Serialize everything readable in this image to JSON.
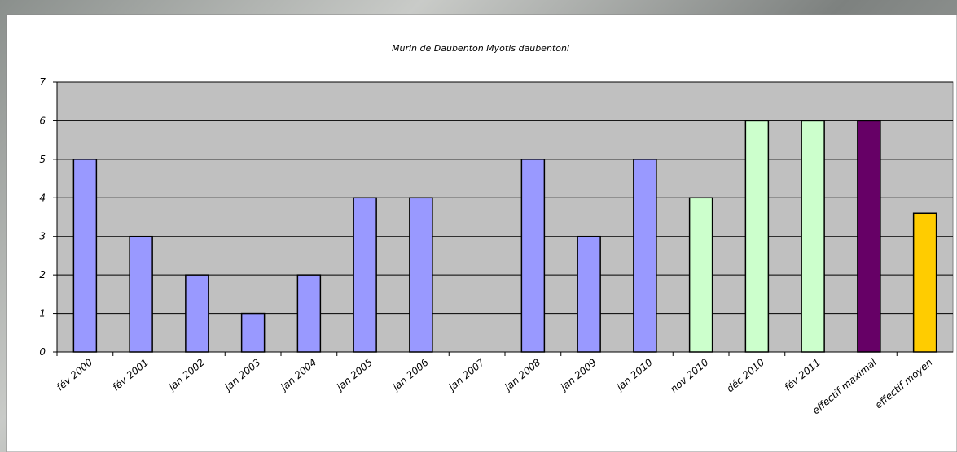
{
  "chart_data": {
    "type": "bar",
    "title": "Murin de Daubenton Myotis daubentoni",
    "categories": [
      "fév 2000",
      "fév 2001",
      "jan 2002",
      "jan 2003",
      "jan 2004",
      "jan 2005",
      "jan 2006",
      "jan 2007",
      "jan 2008",
      "jan 2009",
      "jan 2010",
      "nov 2010",
      "déc 2010",
      "fév 2011",
      "effectif maximal",
      "effectif moyen"
    ],
    "values": [
      5,
      3,
      2,
      1,
      2,
      4,
      4,
      0,
      5,
      3,
      5,
      4,
      6,
      6,
      6,
      3.6
    ],
    "colors": [
      "#9999ff",
      "#9999ff",
      "#9999ff",
      "#9999ff",
      "#9999ff",
      "#9999ff",
      "#9999ff",
      "#9999ff",
      "#9999ff",
      "#9999ff",
      "#9999ff",
      "#ccffcc",
      "#ccffcc",
      "#ccffcc",
      "#660066",
      "#ffcc00"
    ],
    "ylim": [
      0,
      7
    ],
    "yticks": [
      0,
      1,
      2,
      3,
      4,
      5,
      6,
      7
    ],
    "grid": true
  }
}
